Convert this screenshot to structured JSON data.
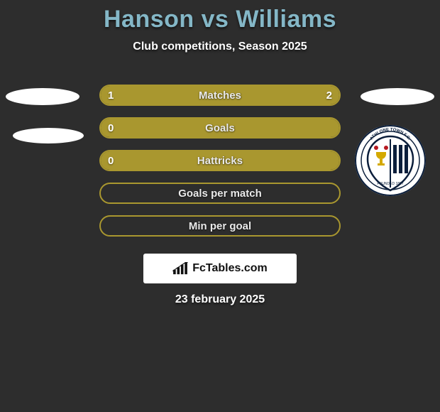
{
  "title_color": "#84b7c7",
  "title": "Hanson vs Williams",
  "subtitle": "Club competitions, Season 2025",
  "brand_text": "FcTables.com",
  "date": "23 february 2025",
  "bar_border_color": "#a9972f",
  "bar_fill_color": "#a9972f",
  "bars": [
    {
      "label": "Matches",
      "left": "1",
      "right": "2",
      "left_pct": 33,
      "right_pct": 67
    },
    {
      "label": "Goals",
      "left": "0",
      "right": "",
      "left_pct": 100,
      "right_pct": 0
    },
    {
      "label": "Hattricks",
      "left": "0",
      "right": "",
      "left_pct": 100,
      "right_pct": 0
    },
    {
      "label": "Goals per match",
      "left": "",
      "right": "",
      "left_pct": 0,
      "right_pct": 0
    },
    {
      "label": "Min per goal",
      "left": "",
      "right": "",
      "left_pct": 0,
      "right_pct": 0
    }
  ]
}
